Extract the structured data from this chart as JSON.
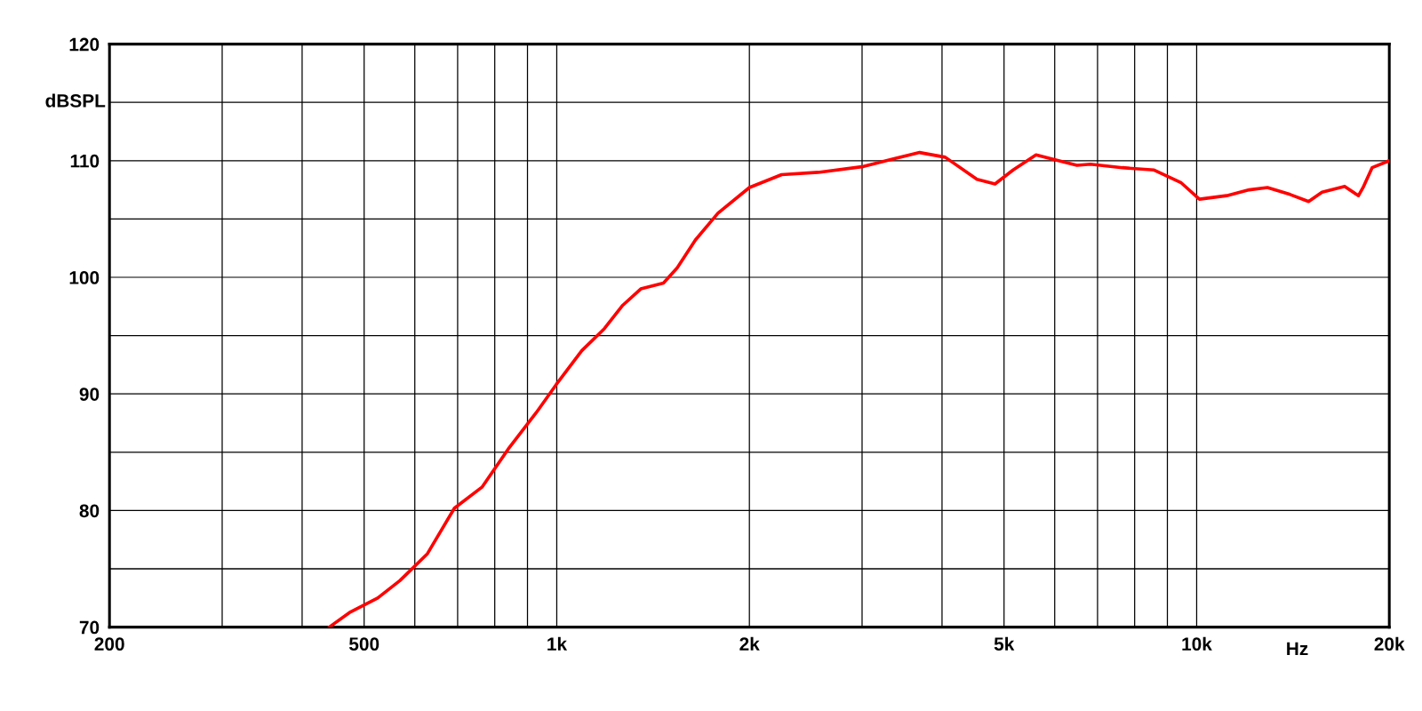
{
  "chart_data": {
    "type": "line",
    "xlabel": "Hz",
    "ylabel": "dBSPL",
    "log": "x",
    "grid": true,
    "marker": "none",
    "line_style": "solid",
    "xlim": [
      200,
      20000
    ],
    "ylim": [
      70,
      120
    ],
    "xticks": [
      {
        "value": 200,
        "label": "200"
      },
      {
        "value": 300,
        "label": null
      },
      {
        "value": 400,
        "label": null
      },
      {
        "value": 500,
        "label": "500"
      },
      {
        "value": 600,
        "label": null
      },
      {
        "value": 700,
        "label": null
      },
      {
        "value": 800,
        "label": null
      },
      {
        "value": 900,
        "label": null
      },
      {
        "value": 1000,
        "label": "1k"
      },
      {
        "value": 2000,
        "label": "2k"
      },
      {
        "value": 3000,
        "label": null
      },
      {
        "value": 4000,
        "label": null
      },
      {
        "value": 5000,
        "label": "5k"
      },
      {
        "value": 6000,
        "label": null
      },
      {
        "value": 7000,
        "label": null
      },
      {
        "value": 8000,
        "label": null
      },
      {
        "value": 9000,
        "label": null
      },
      {
        "value": 10000,
        "label": "10k"
      },
      {
        "value": 20000,
        "label": "20k"
      }
    ],
    "yticks": [
      70,
      {
        "value": 75,
        "label": null
      },
      80,
      {
        "value": 85,
        "label": null
      },
      90,
      {
        "value": 95,
        "label": null
      },
      100,
      {
        "value": 105,
        "label": null
      },
      110,
      {
        "value": 115,
        "label": null
      },
      120
    ],
    "series": [
      {
        "color": "#ff0000",
        "x": [
          441,
          476,
          525,
          569,
          628,
          692,
          764,
          843,
          929,
          998,
          1094,
          1187,
          1268,
          1353,
          1468,
          1542,
          1647,
          1786,
          2000,
          2246,
          2561,
          3015,
          3380,
          3690,
          4046,
          4536,
          4840,
          5166,
          5610,
          6083,
          6500,
          6823,
          7656,
          8580,
          9460,
          10100,
          11140,
          12080,
          12900,
          14000,
          14960,
          15700,
          17030,
          17900,
          18200,
          18800,
          20000
        ],
        "values": [
          70,
          71.3,
          72.5,
          74.0,
          76.3,
          80.2,
          82.0,
          85.4,
          88.4,
          90.8,
          93.7,
          95.6,
          97.6,
          99.0,
          99.5,
          100.8,
          103.2,
          105.5,
          107.7,
          108.8,
          109.0,
          109.5,
          110.2,
          110.7,
          110.3,
          108.4,
          108.0,
          109.2,
          110.5,
          110.0,
          109.6,
          109.7,
          109.4,
          109.2,
          108.1,
          106.7,
          107.0,
          107.5,
          107.7,
          107.1,
          106.5,
          107.3,
          107.8,
          107.0,
          107.7,
          109.4,
          110.0
        ]
      }
    ]
  }
}
